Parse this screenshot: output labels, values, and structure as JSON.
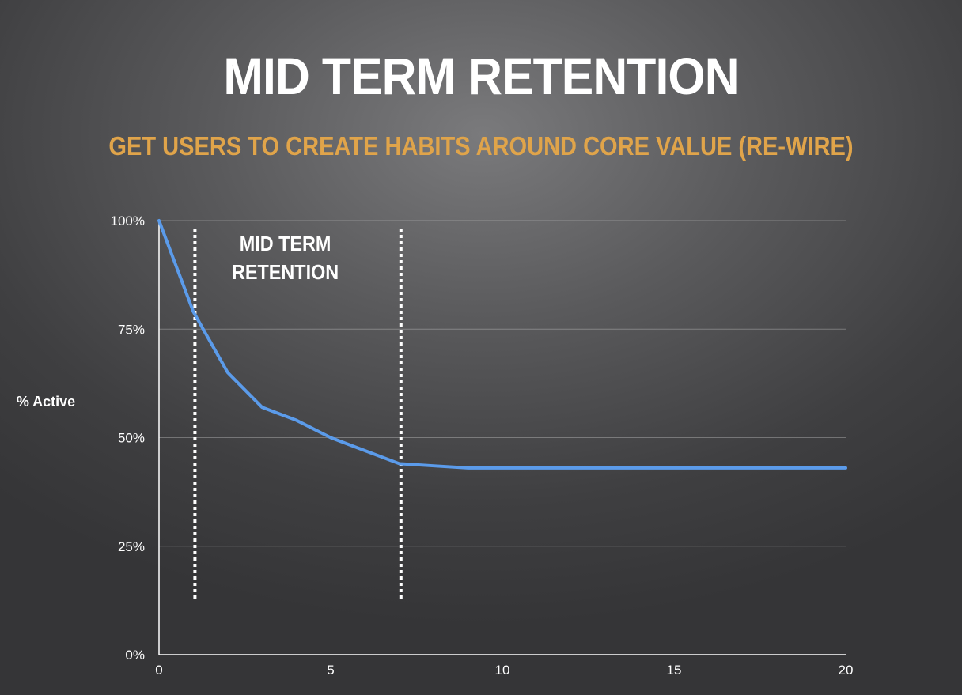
{
  "chart_data": {
    "type": "line",
    "title": "MID TERM RETENTION",
    "subtitle": "GET USERS TO CREATE HABITS AROUND CORE VALUE (RE-WIRE)",
    "xlabel": "",
    "ylabel": "% Active",
    "xlim": [
      0,
      20
    ],
    "ylim": [
      0,
      100
    ],
    "x_ticks": [
      0,
      5,
      10,
      15,
      20
    ],
    "y_ticks": [
      0,
      25,
      50,
      75,
      100
    ],
    "y_tick_labels": [
      "0%",
      "25%",
      "50%",
      "75%",
      "100%"
    ],
    "grid": true,
    "series": [
      {
        "color": "#5b9bea",
        "x": [
          0,
          1,
          2,
          3,
          4,
          5,
          6,
          7,
          8,
          9,
          10,
          11,
          12,
          13,
          14,
          15,
          16,
          17,
          18,
          19,
          20
        ],
        "values": [
          100,
          79,
          65,
          57,
          54,
          50,
          47,
          44,
          43.5,
          43,
          43,
          43,
          43,
          43,
          43,
          43,
          43,
          43,
          43,
          43,
          43
        ]
      }
    ],
    "annotations": [
      {
        "type": "vline",
        "x": 1,
        "style": "dotted",
        "color": "#ffffff"
      },
      {
        "type": "vline",
        "x": 7,
        "style": "dotted",
        "color": "#ffffff"
      },
      {
        "type": "text",
        "lines": [
          "MID TERM",
          "RETENTION"
        ],
        "x": 4
      }
    ]
  }
}
